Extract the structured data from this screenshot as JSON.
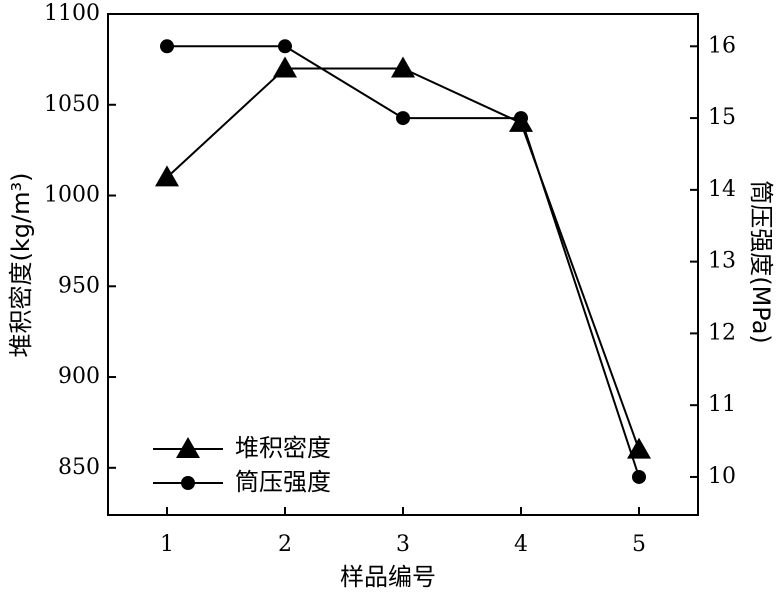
{
  "chart_data": {
    "type": "line",
    "x_label": "样品编号",
    "y_label": "堆积密度(kg/m³)",
    "y2_label": "筒压强度(MPa)",
    "x": [
      1,
      2,
      3,
      4,
      5
    ],
    "xlim": [
      0.5,
      5.5
    ],
    "xticks": [
      1,
      2,
      3,
      4,
      5
    ],
    "ylim": [
      824,
      1100
    ],
    "yticks": [
      850,
      900,
      950,
      1000,
      1050,
      1100
    ],
    "y2lim": [
      9.47,
      16.45
    ],
    "y2ticks": [
      10,
      11,
      12,
      13,
      14,
      15,
      16
    ],
    "legend": "lower left",
    "series": [
      {
        "name": "堆积密度",
        "color": "#000000",
        "marker": "triangle",
        "values": [
          1010,
          1070,
          1070,
          1040,
          860
        ]
      },
      {
        "name": "筒压强度",
        "color": "#000000",
        "marker": "circle",
        "axis": "y2",
        "values": [
          16,
          16,
          15,
          15,
          10
        ]
      }
    ]
  }
}
